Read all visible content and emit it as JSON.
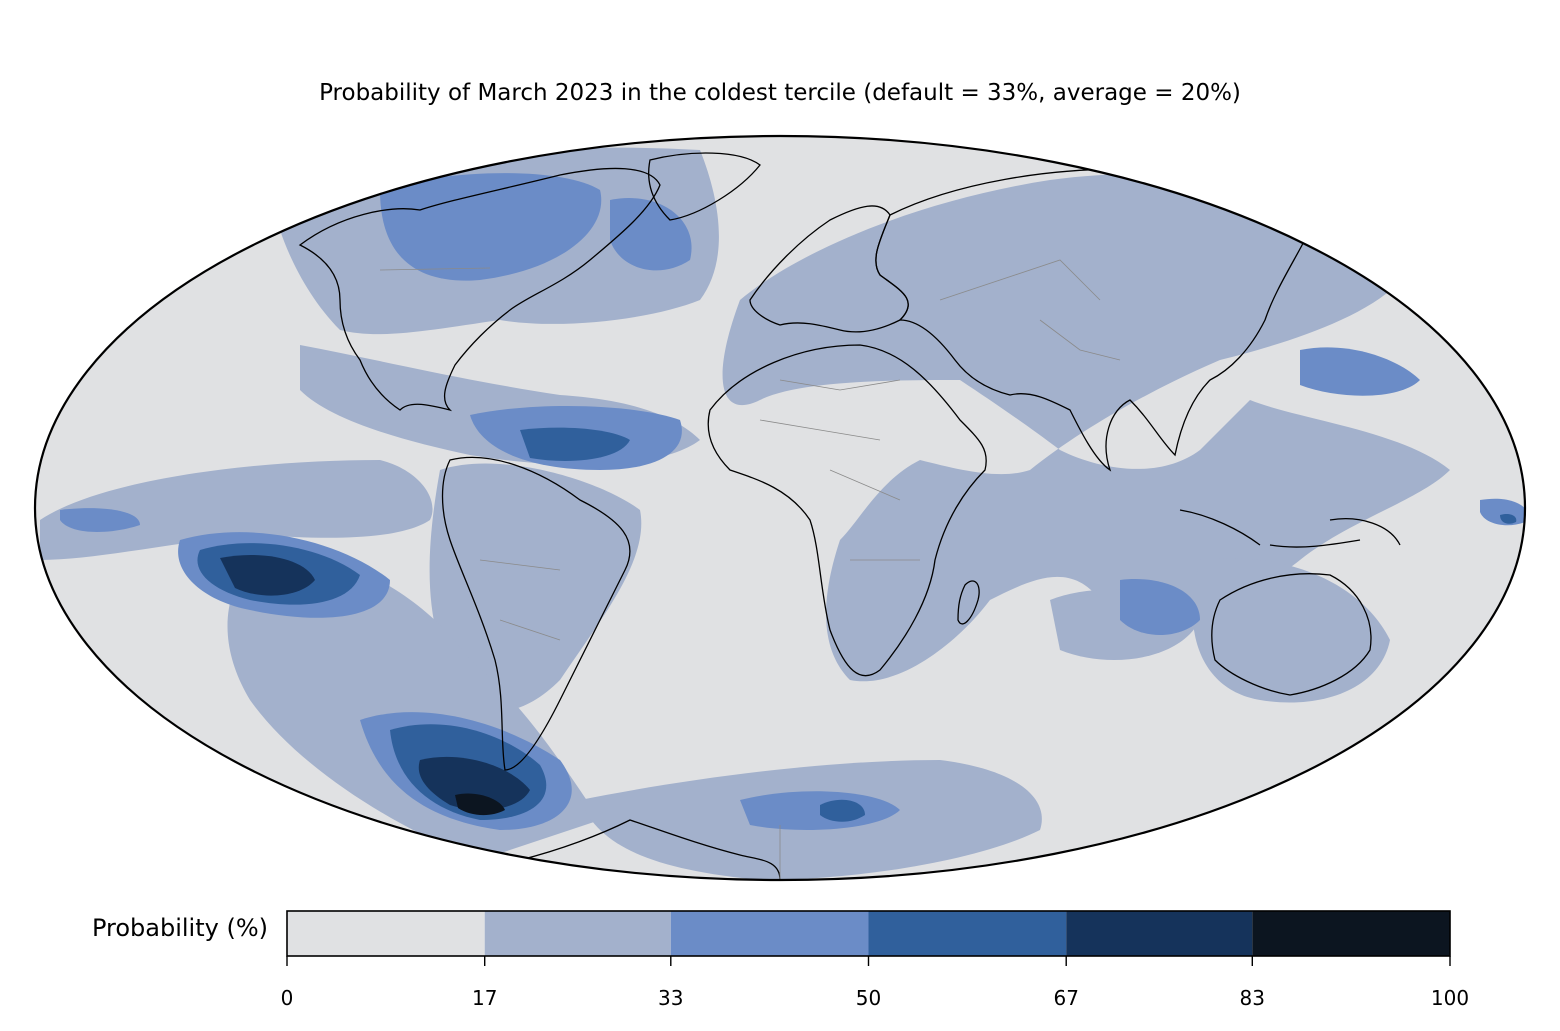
{
  "title": "Probability of March 2023 in the coldest tercile (default = 33%, average = 20%)",
  "colorbar": {
    "label": "Probability (%)",
    "ticks": [
      "0",
      "17",
      "33",
      "50",
      "67",
      "83",
      "100"
    ],
    "levels": [
      0,
      17,
      33,
      50,
      67,
      83,
      100
    ],
    "colors": [
      "#e0e1e3",
      "#a3b1cc",
      "#6b8cc7",
      "#30609c",
      "#15335b",
      "#0c1520"
    ]
  },
  "map": {
    "projection": "Mollweide",
    "features": [
      "coastlines",
      "country borders"
    ],
    "border_color": "#8a8a8a",
    "coast_color": "#000000"
  }
}
